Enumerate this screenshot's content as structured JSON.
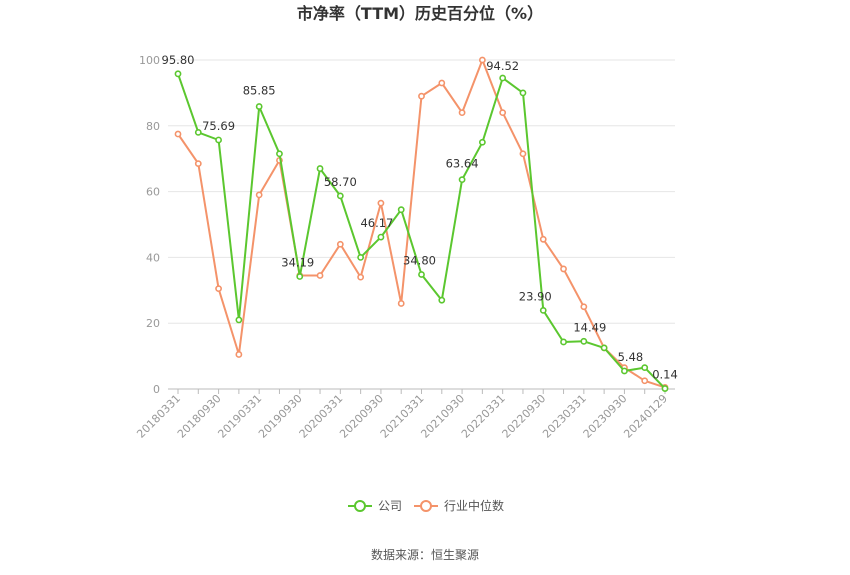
{
  "chart_data": {
    "type": "line",
    "title": "市净率（TTM）历史百分位（%）",
    "source": "数据来源：恒生聚源",
    "ylim": [
      0,
      100
    ],
    "yticks": [
      0,
      20,
      40,
      60,
      80,
      100
    ],
    "grid": true,
    "legend_position": "bottom",
    "x": [
      "20180331",
      "20180630",
      "20180930",
      "20181231",
      "20190331",
      "20190630",
      "20190930",
      "20191231",
      "20200331",
      "20200630",
      "20200930",
      "20201231",
      "20210331",
      "20210630",
      "20210930",
      "20211231",
      "20220331",
      "20220630",
      "20220930",
      "20221231",
      "20230331",
      "20230630",
      "20230930",
      "20231231",
      "20240129"
    ],
    "x_tick_labels": [
      "20180331",
      "20180930",
      "20190331",
      "20190930",
      "20200331",
      "20200930",
      "20210331",
      "20210930",
      "20220331",
      "20220930",
      "20230331",
      "20230930",
      "20240129"
    ],
    "series": [
      {
        "name": "公司",
        "color": "#5bc72f",
        "values": [
          95.8,
          78.0,
          75.69,
          21.0,
          85.85,
          71.5,
          34.19,
          67.0,
          58.7,
          40.0,
          46.17,
          54.5,
          34.8,
          27.0,
          63.64,
          75.0,
          94.52,
          90.0,
          23.9,
          14.3,
          14.49,
          12.5,
          5.48,
          6.5,
          0.14
        ],
        "labels": {
          "0": "95.80",
          "2": "75.69",
          "4": "85.85",
          "6": "34.19",
          "8": "58.70",
          "10": "46.17",
          "12": "34.80",
          "14": "63.64",
          "16": "94.52",
          "18": "23.90",
          "20": "14.49",
          "22": "5.48",
          "24": "0.14"
        }
      },
      {
        "name": "行业中位数",
        "color": "#f4936a",
        "values": [
          77.5,
          68.5,
          30.5,
          10.5,
          59.0,
          69.5,
          34.5,
          34.5,
          44.0,
          34.0,
          56.5,
          26.0,
          89.0,
          93.0,
          84.0,
          100.0,
          84.0,
          71.5,
          45.5,
          36.5,
          25.0,
          12.5,
          6.5,
          2.5,
          0.5
        ]
      }
    ]
  }
}
